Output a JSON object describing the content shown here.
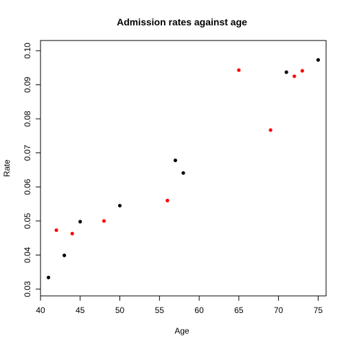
{
  "chart_data": {
    "type": "scatter",
    "title": "Admission rates against age",
    "xlabel": "Age",
    "ylabel": "Rate",
    "xlim": [
      40,
      76
    ],
    "ylim": [
      0.028,
      0.103
    ],
    "x_ticks": [
      40,
      45,
      50,
      55,
      60,
      65,
      70,
      75
    ],
    "y_ticks": [
      0.03,
      0.04,
      0.05,
      0.06,
      0.07,
      0.08,
      0.09,
      0.1
    ],
    "x_tick_labels": [
      "40",
      "45",
      "50",
      "55",
      "60",
      "65",
      "70",
      "75"
    ],
    "y_tick_labels": [
      "0.03",
      "0.04",
      "0.05",
      "0.06",
      "0.07",
      "0.08",
      "0.09",
      "0.10"
    ],
    "grid": false,
    "series": [
      {
        "color": "#000000",
        "points": [
          {
            "x": 41,
            "y": 0.0334
          },
          {
            "x": 43,
            "y": 0.0399
          },
          {
            "x": 45,
            "y": 0.0498
          },
          {
            "x": 50,
            "y": 0.0545
          },
          {
            "x": 57,
            "y": 0.0678
          },
          {
            "x": 58,
            "y": 0.0641
          },
          {
            "x": 71,
            "y": 0.0937
          },
          {
            "x": 75,
            "y": 0.0973
          }
        ]
      },
      {
        "color": "#ff0000",
        "points": [
          {
            "x": 42,
            "y": 0.0473
          },
          {
            "x": 44,
            "y": 0.0463
          },
          {
            "x": 48,
            "y": 0.05
          },
          {
            "x": 56,
            "y": 0.056
          },
          {
            "x": 65,
            "y": 0.0943
          },
          {
            "x": 69,
            "y": 0.0767
          },
          {
            "x": 72,
            "y": 0.0925
          },
          {
            "x": 73,
            "y": 0.0941
          }
        ]
      }
    ]
  }
}
